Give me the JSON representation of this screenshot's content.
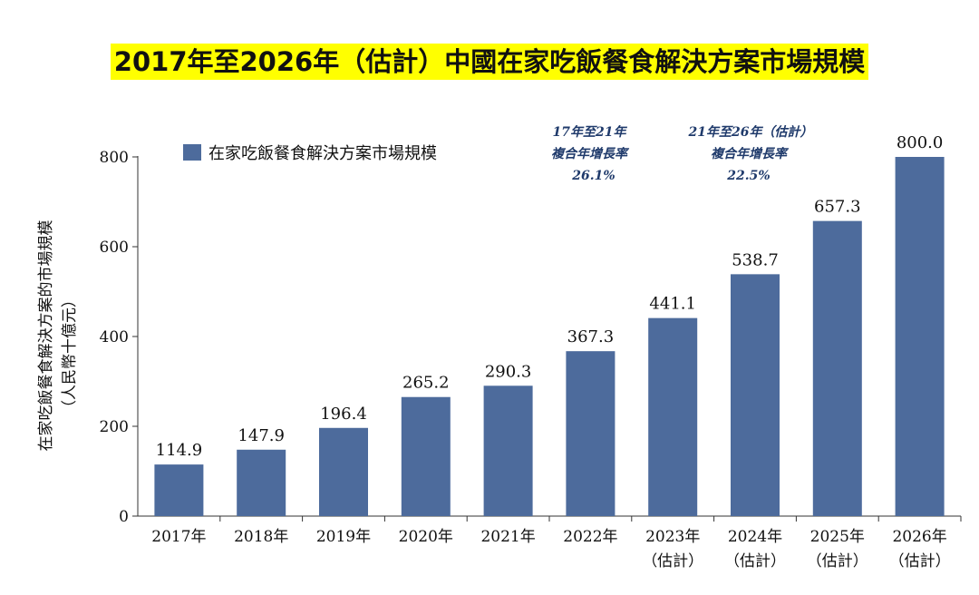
{
  "chart_data": {
    "type": "bar",
    "title": "2017年至2026年（估計）中國在家吃飯餐食解決方案市場規模",
    "ylabel": "在家吃飯餐食解決方案的市場規模",
    "ylabel_unit": "（人民幣十億元）",
    "legend": "在家吃飯餐食解決方案市場規模",
    "legend_placement": "top-left",
    "bar_color": "#4d6b9c",
    "ylim": [
      0,
      800
    ],
    "yticks": [
      0,
      200,
      400,
      600,
      800
    ],
    "categories": [
      {
        "year": "2017年",
        "note": ""
      },
      {
        "year": "2018年",
        "note": ""
      },
      {
        "year": "2019年",
        "note": ""
      },
      {
        "year": "2020年",
        "note": ""
      },
      {
        "year": "2021年",
        "note": ""
      },
      {
        "year": "2022年",
        "note": ""
      },
      {
        "year": "2023年",
        "note": "（估計）"
      },
      {
        "year": "2024年",
        "note": "（估計）"
      },
      {
        "year": "2025年",
        "note": "（估計）"
      },
      {
        "year": "2026年",
        "note": "（估計）"
      }
    ],
    "values": [
      114.9,
      147.9,
      196.4,
      265.2,
      290.3,
      367.3,
      441.1,
      538.7,
      657.3,
      800.0
    ],
    "value_labels": [
      "114.9",
      "147.9",
      "196.4",
      "265.2",
      "290.3",
      "367.3",
      "441.1",
      "538.7",
      "657.3",
      "800.0"
    ],
    "annotations": [
      {
        "line1": "17年至21年",
        "line2": "複合年增長率",
        "value": "26.1%"
      },
      {
        "line1": "21年至26年（估計）",
        "line2": "複合年增長率",
        "value": "22.5%"
      }
    ]
  }
}
